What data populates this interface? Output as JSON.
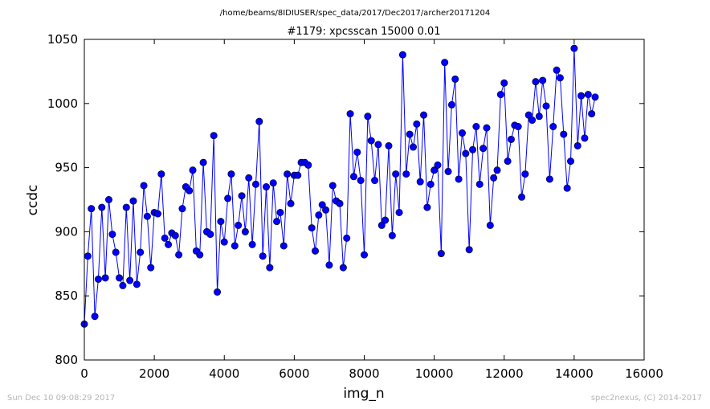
{
  "chart_data": {
    "type": "line",
    "suptitle": "/home/beams/8IDIUSER/spec_data/2017/Dec2017/archer20171204",
    "title": "#1179: xpcsscan 15000 0.01",
    "xlabel": "img_n",
    "ylabel": "ccdc",
    "xlim": [
      0,
      16000
    ],
    "ylim": [
      800,
      1050
    ],
    "xticks": [
      "0",
      "2000",
      "4000",
      "6000",
      "8000",
      "10000",
      "12000",
      "14000",
      "16000"
    ],
    "yticks": [
      "800",
      "850",
      "900",
      "950",
      "1000",
      "1050"
    ],
    "grid": false,
    "series_color": "#0000ff",
    "marker": "circle",
    "x_start": 0,
    "x_step": 100,
    "y": [
      828,
      881,
      918,
      834,
      863,
      919,
      864,
      925,
      898,
      884,
      864,
      858,
      919,
      862,
      924,
      859,
      884,
      936,
      912,
      872,
      915,
      914,
      945,
      895,
      890,
      899,
      897,
      882,
      918,
      935,
      932,
      948,
      885,
      882,
      954,
      900,
      898,
      975,
      853,
      908,
      892,
      926,
      945,
      889,
      905,
      928,
      900,
      942,
      890,
      937,
      986,
      881,
      935,
      872,
      938,
      908,
      915,
      889,
      945,
      922,
      944,
      944,
      954,
      954,
      952,
      903,
      885,
      913,
      921,
      917,
      874,
      936,
      924,
      922,
      872,
      895,
      992,
      943,
      962,
      940,
      882,
      990,
      971,
      940,
      968,
      905,
      909,
      967,
      897,
      945,
      915,
      1038,
      945,
      976,
      966,
      984,
      939,
      991,
      919,
      937,
      948,
      952,
      883,
      1032,
      947,
      999,
      1019,
      941,
      977,
      961,
      886,
      964,
      982,
      937,
      965,
      981,
      905,
      942,
      948,
      1007,
      1016,
      955,
      972,
      983,
      982,
      927,
      945,
      991,
      987,
      1017,
      990,
      1018,
      998,
      941,
      982,
      1026,
      1020,
      976,
      934,
      955,
      1043,
      967,
      1006,
      973,
      1007,
      992,
      1005
    ]
  },
  "footer": {
    "left": "Sun Dec 10 09:08:29 2017",
    "right": "spec2nexus, (C) 2014-2017"
  }
}
